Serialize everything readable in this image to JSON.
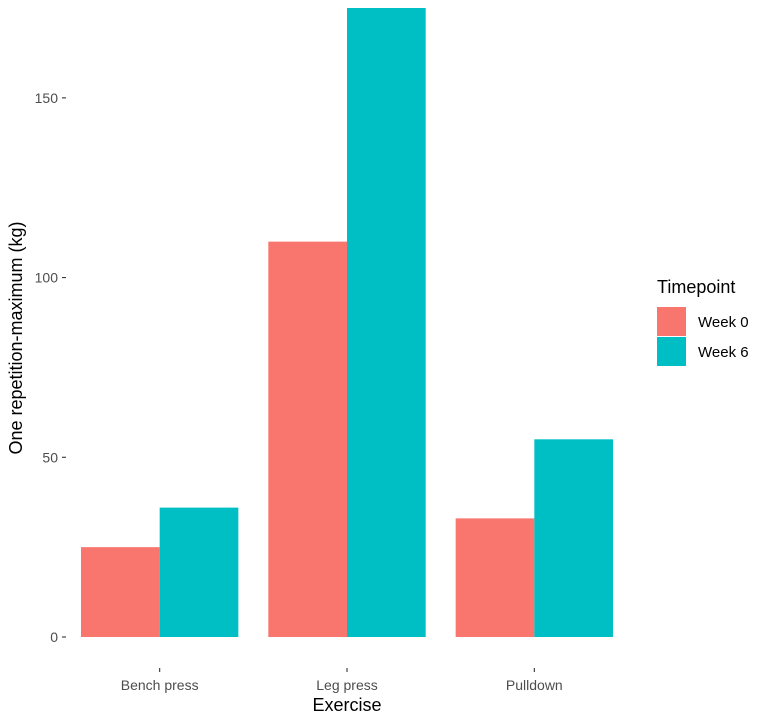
{
  "chart_data": {
    "type": "bar",
    "title": "",
    "xlabel": "Exercise",
    "ylabel": "One repetition-maximum (kg)",
    "categories": [
      "Bench press",
      "Leg press",
      "Pulldown"
    ],
    "series": [
      {
        "name": "Week 0",
        "color": "#F8766D",
        "values": [
          25,
          110,
          33
        ]
      },
      {
        "name": "Week 6",
        "color": "#00BFC4",
        "values": [
          36,
          175,
          55
        ]
      }
    ],
    "yticks": [
      0,
      50,
      100,
      150
    ],
    "ylim": [
      0,
      175
    ],
    "grid": false,
    "legend": {
      "title": "Timepoint",
      "position": "right"
    }
  }
}
